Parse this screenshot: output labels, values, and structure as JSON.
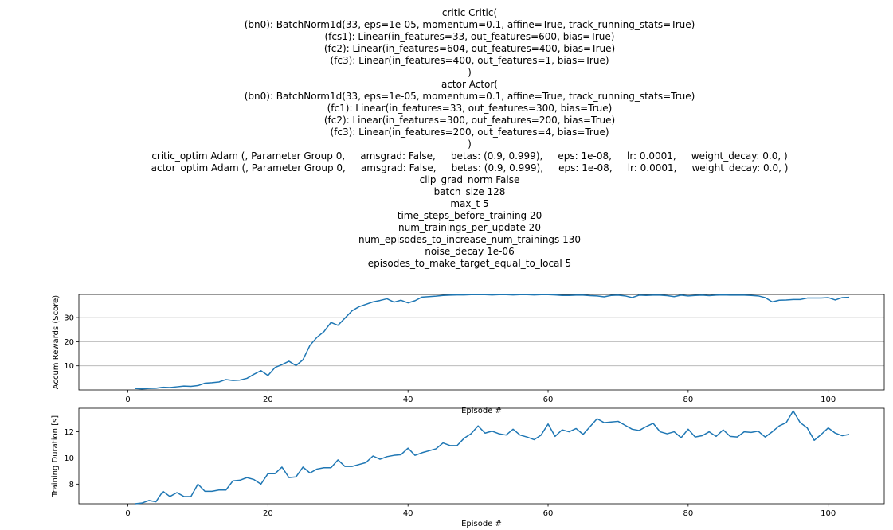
{
  "header_lines": [
    "critic Critic(",
    "(bn0): BatchNorm1d(33, eps=1e-05, momentum=0.1, affine=True, track_running_stats=True)",
    "(fcs1): Linear(in_features=33, out_features=600, bias=True)",
    "(fc2): Linear(in_features=604, out_features=400, bias=True)",
    "(fc3): Linear(in_features=400, out_features=1, bias=True)",
    ")",
    "actor Actor(",
    "(bn0): BatchNorm1d(33, eps=1e-05, momentum=0.1, affine=True, track_running_stats=True)",
    "(fc1): Linear(in_features=33, out_features=300, bias=True)",
    "(fc2): Linear(in_features=300, out_features=200, bias=True)",
    "(fc3): Linear(in_features=200, out_features=4, bias=True)",
    ")",
    "critic_optim Adam (, Parameter Group 0,     amsgrad: False,     betas: (0.9, 0.999),     eps: 1e-08,     lr: 0.0001,     weight_decay: 0.0, )",
    "actor_optim Adam (, Parameter Group 0,     amsgrad: False,     betas: (0.9, 0.999),     eps: 1e-08,     lr: 0.0001,     weight_decay: 0.0, )",
    "clip_grad_norm False",
    "batch_size 128",
    "max_t 5",
    "time_steps_before_training 20",
    "num_trainings_per_update 20",
    "num_episodes_to_increase_num_trainings 130",
    "noise_decay 1e-06",
    "episodes_to_make_target_equal_to_local 5"
  ],
  "chart_data": [
    {
      "type": "line",
      "xlabel": "Episode #",
      "ylabel": "Accum Rewards (Score)",
      "xlim": [
        -7,
        108
      ],
      "ylim": [
        0,
        39.6
      ],
      "xticks": [
        0,
        20,
        40,
        60,
        80,
        100
      ],
      "yticks": [
        10,
        20,
        30
      ],
      "grid": "horizontal",
      "line_color": "#1f77b4",
      "x": [
        1,
        2,
        3,
        4,
        5,
        6,
        7,
        8,
        9,
        10,
        11,
        12,
        13,
        14,
        15,
        16,
        17,
        18,
        19,
        20,
        21,
        22,
        23,
        24,
        25,
        26,
        27,
        28,
        29,
        30,
        31,
        32,
        33,
        34,
        35,
        36,
        37,
        38,
        39,
        40,
        41,
        42,
        43,
        44,
        45,
        46,
        47,
        48,
        49,
        50,
        51,
        52,
        53,
        54,
        55,
        56,
        57,
        58,
        59,
        60,
        61,
        62,
        63,
        64,
        65,
        66,
        67,
        68,
        69,
        70,
        71,
        72,
        73,
        74,
        75,
        76,
        77,
        78,
        79,
        80,
        81,
        82,
        83,
        84,
        85,
        86,
        87,
        88,
        89,
        90,
        91,
        92,
        93,
        94,
        95,
        96,
        97,
        98,
        99,
        100,
        101,
        102,
        103
      ],
      "y": [
        0.6,
        0.4,
        0.6,
        0.7,
        1.1,
        1.0,
        1.3,
        1.6,
        1.5,
        1.8,
        2.8,
        3.0,
        3.3,
        4.3,
        3.9,
        4.1,
        4.8,
        6.5,
        8.0,
        6.0,
        9.3,
        10.5,
        11.9,
        10.1,
        12.5,
        18.5,
        21.8,
        24.2,
        28.0,
        26.8,
        29.8,
        32.8,
        34.5,
        35.5,
        36.5,
        37.1,
        37.8,
        36.4,
        37.2,
        36.1,
        37.0,
        38.5,
        38.7,
        38.9,
        39.2,
        39.3,
        39.4,
        39.4,
        39.5,
        39.5,
        39.5,
        39.4,
        39.5,
        39.5,
        39.4,
        39.5,
        39.5,
        39.4,
        39.5,
        39.5,
        39.4,
        39.2,
        39.2,
        39.3,
        39.3,
        39.1,
        39.0,
        38.6,
        39.2,
        39.3,
        39.0,
        38.3,
        39.3,
        39.2,
        39.3,
        39.3,
        39.1,
        38.7,
        39.3,
        39.0,
        39.2,
        39.3,
        39.1,
        39.3,
        39.4,
        39.3,
        39.3,
        39.3,
        39.2,
        39.0,
        38.3,
        36.5,
        37.2,
        37.3,
        37.5,
        37.5,
        38.1,
        38.1,
        38.1,
        38.3,
        37.3,
        38.3,
        38.4
      ]
    },
    {
      "type": "line",
      "xlabel": "Episode #",
      "ylabel": "Training Duration [s]",
      "xlim": [
        -7,
        108
      ],
      "ylim": [
        6.5,
        13.8
      ],
      "xticks": [
        0,
        20,
        40,
        60,
        80,
        100
      ],
      "yticks": [
        8,
        10,
        12
      ],
      "grid": "none",
      "line_color": "#1f77b4",
      "x": [
        1,
        2,
        3,
        4,
        5,
        6,
        7,
        8,
        9,
        10,
        11,
        12,
        13,
        14,
        15,
        16,
        17,
        18,
        19,
        20,
        21,
        22,
        23,
        24,
        25,
        26,
        27,
        28,
        29,
        30,
        31,
        32,
        33,
        34,
        35,
        36,
        37,
        38,
        39,
        40,
        41,
        42,
        43,
        44,
        45,
        46,
        47,
        48,
        49,
        50,
        51,
        52,
        53,
        54,
        55,
        56,
        57,
        58,
        59,
        60,
        61,
        62,
        63,
        64,
        65,
        66,
        67,
        68,
        69,
        70,
        71,
        72,
        73,
        74,
        75,
        76,
        77,
        78,
        79,
        80,
        81,
        82,
        83,
        84,
        85,
        86,
        87,
        88,
        89,
        90,
        91,
        92,
        93,
        94,
        95,
        96,
        97,
        98,
        99,
        100,
        101,
        102,
        103
      ],
      "y": [
        6.5,
        6.55,
        6.75,
        6.65,
        7.45,
        7.05,
        7.35,
        7.05,
        7.05,
        8.0,
        7.45,
        7.45,
        7.55,
        7.55,
        8.25,
        8.3,
        8.5,
        8.35,
        8.0,
        8.8,
        8.8,
        9.3,
        8.5,
        8.55,
        9.3,
        8.85,
        9.15,
        9.25,
        9.25,
        9.85,
        9.35,
        9.35,
        9.5,
        9.65,
        10.15,
        9.9,
        10.1,
        10.2,
        10.25,
        10.75,
        10.2,
        10.4,
        10.55,
        10.7,
        11.15,
        10.95,
        10.95,
        11.5,
        11.85,
        12.45,
        11.9,
        12.05,
        11.85,
        11.75,
        12.2,
        11.75,
        11.6,
        11.4,
        11.75,
        12.6,
        11.65,
        12.15,
        12.0,
        12.25,
        11.8,
        12.4,
        13.0,
        12.7,
        12.75,
        12.8,
        12.5,
        12.2,
        12.1,
        12.4,
        12.65,
        12.0,
        11.85,
        12.0,
        11.55,
        12.2,
        11.6,
        11.7,
        12.0,
        11.65,
        12.15,
        11.65,
        11.6,
        12.0,
        11.95,
        12.05,
        11.6,
        12.0,
        12.45,
        12.7,
        13.6,
        12.7,
        12.3,
        11.35,
        11.8,
        12.3,
        11.9,
        11.7,
        11.8
      ]
    }
  ]
}
